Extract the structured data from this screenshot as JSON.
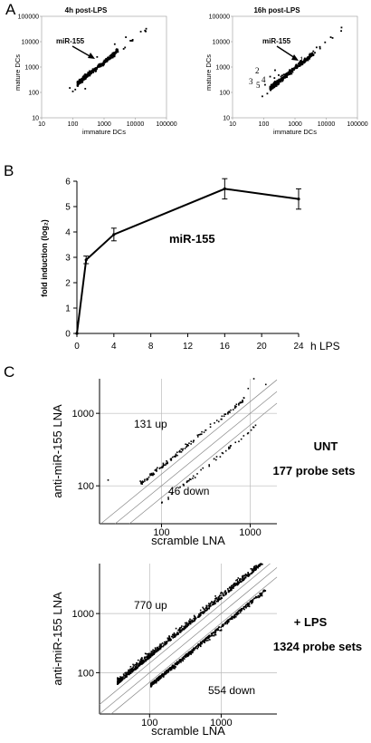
{
  "panels": {
    "A": {
      "letter": "A"
    },
    "B": {
      "letter": "B"
    },
    "C": {
      "letter": "C"
    }
  },
  "chart_data": [
    {
      "id": "A1",
      "type": "scatter",
      "title": "4h post-LPS",
      "xlabel": "immature DCs",
      "ylabel": "mature DCs",
      "xscale": "log",
      "yscale": "log",
      "xlim": [
        10,
        100000
      ],
      "ylim": [
        10,
        100000
      ],
      "xticks": [
        "10",
        "100",
        "1000",
        "10000",
        "100000"
      ],
      "yticks": [
        "10",
        "100",
        "1000",
        "10000",
        "100000"
      ],
      "annotations": [
        {
          "text": "miR-155",
          "arrow": true,
          "target": [
            600,
            2500
          ]
        }
      ]
    },
    {
      "id": "A2",
      "type": "scatter",
      "title": "16h post-LPS",
      "xlabel": "immature DCs",
      "ylabel": "mature DCs",
      "xscale": "log",
      "yscale": "log",
      "xlim": [
        10,
        100000
      ],
      "ylim": [
        10,
        100000
      ],
      "xticks": [
        "10",
        "100",
        "1000",
        "10000",
        "100000"
      ],
      "yticks": [
        "10",
        "100",
        "1000",
        "10000",
        "100000"
      ],
      "annotations": [
        {
          "text": "miR-155",
          "arrow": true,
          "target": [
            1400,
            1500
          ]
        },
        {
          "text": "1",
          "target": [
            1400,
            1500
          ]
        },
        {
          "text": "2",
          "target": [
            230,
            750
          ]
        },
        {
          "text": "3",
          "target": [
            160,
            420
          ]
        },
        {
          "text": "4",
          "target": [
            300,
            480
          ]
        },
        {
          "text": "5",
          "target": [
            220,
            370
          ]
        }
      ]
    },
    {
      "id": "B",
      "type": "line",
      "title": "",
      "xlabel": "h LPS",
      "ylabel": "fold induction (log₂)",
      "xlim": [
        0,
        24
      ],
      "ylim": [
        0,
        6
      ],
      "xticks": [
        "0",
        "4",
        "8",
        "12",
        "16",
        "20",
        "24"
      ],
      "yticks": [
        "0",
        "1",
        "2",
        "3",
        "4",
        "5",
        "6"
      ],
      "series": [
        {
          "name": "miR-155",
          "x": [
            0,
            1,
            4,
            16,
            24
          ],
          "y": [
            0,
            2.9,
            3.9,
            5.7,
            5.3
          ],
          "err": [
            0,
            0.15,
            0.25,
            0.4,
            0.4
          ]
        }
      ],
      "series_label": "miR-155"
    },
    {
      "id": "C1",
      "type": "scatter",
      "xlabel": "scramble LNA",
      "ylabel": "anti-miR-155 LNA",
      "xscale": "log",
      "yscale": "log",
      "xlim": [
        20,
        2000
      ],
      "ylim": [
        30,
        3000
      ],
      "xticks": [
        "100",
        "1000"
      ],
      "yticks": [
        "100",
        "1000"
      ],
      "annotations": [
        {
          "text": "131 up"
        },
        {
          "text": "46 down"
        }
      ],
      "side_labels": [
        "UNT",
        "177 probe sets"
      ]
    },
    {
      "id": "C2",
      "type": "scatter",
      "xlabel": "scramble LNA",
      "ylabel": "anti-miR-155 LNA",
      "xscale": "log",
      "yscale": "log",
      "xlim": [
        20,
        6000
      ],
      "ylim": [
        20,
        7000
      ],
      "xticks": [
        "100",
        "1000"
      ],
      "yticks": [
        "100",
        "1000"
      ],
      "annotations": [
        {
          "text": "770 up"
        },
        {
          "text": "554 down"
        }
      ],
      "side_labels": [
        "+ LPS",
        "1324 probe sets"
      ]
    }
  ]
}
